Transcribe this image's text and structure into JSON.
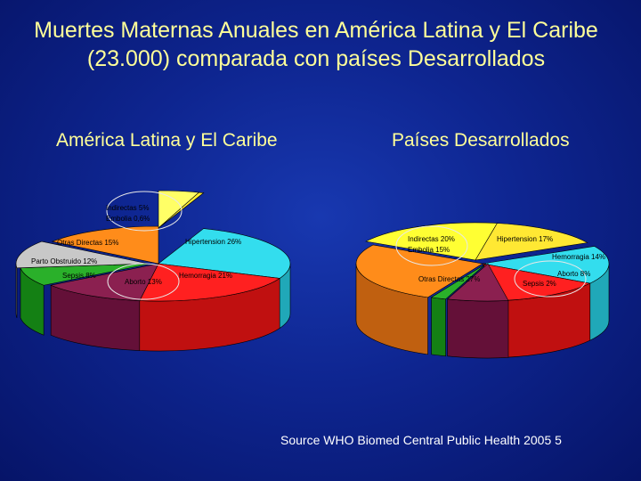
{
  "slide": {
    "title": "Muertes Maternas Anuales en América Latina y El Caribe (23.000) comparada con países Desarrollados",
    "source": "Source WHO Biomed Central Public Health 2005 5"
  },
  "chart_data": [
    {
      "type": "pie",
      "title": "América Latina y El Caribe",
      "categories": [
        "Indirectas",
        "Embolia",
        "Hipertension",
        "Hemorragia",
        "Aborto",
        "Sepsis",
        "Parto Obstruido",
        "Otras Directas"
      ],
      "values": [
        5,
        0.6,
        26,
        21,
        13,
        8,
        12,
        15
      ],
      "labels": [
        "Indirectas 5%",
        "Embolia 0,6%",
        "Hipertension 26%",
        "Hemorragia 21%",
        "Aborto 13%",
        "Sepsis 8%",
        "Parto Obstruido 12%",
        "Otras Directas 15%"
      ],
      "colors": [
        "#ffff66",
        "#ffee33",
        "#33ddee",
        "#ff2020",
        "#8b2050",
        "#2ab02a",
        "#c8c8c8",
        "#ff8c1a"
      ],
      "side_colors": [
        "#c8c840",
        "#c8b020",
        "#20a8b8",
        "#c01010",
        "#641038",
        "#148014",
        "#909090",
        "#c06010"
      ],
      "highlighted": [
        "Indirectas",
        "Aborto"
      ]
    },
    {
      "type": "pie",
      "title": "Países Desarrollados",
      "categories": [
        "Indirectas",
        "Embolia",
        "Hipertension",
        "Hemorragia",
        "Aborto",
        "Sepsis",
        "Otras Directas"
      ],
      "values": [
        20,
        15,
        17,
        14,
        8,
        2,
        27
      ],
      "labels": [
        "Indirectas 20%",
        "Embolia 15%",
        "Hipertension 17%",
        "Hemorragia 14%",
        "Aborto 8%",
        "Sepsis 2%",
        "Otras Directas 27%"
      ],
      "colors": [
        "#ffff33",
        "#ffe833",
        "#33ddee",
        "#ff2020",
        "#8b2050",
        "#2ab02a",
        "#ff8c1a"
      ],
      "side_colors": [
        "#c8c820",
        "#c8b020",
        "#20a8b8",
        "#c01010",
        "#641038",
        "#148014",
        "#c06010"
      ],
      "highlighted": [
        "Indirectas",
        "Aborto"
      ]
    }
  ]
}
